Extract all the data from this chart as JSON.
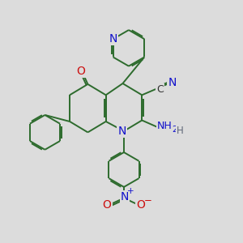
{
  "bg_color": "#dcdcdc",
  "bond_color": "#2d6b2d",
  "bond_width": 1.4,
  "dbo": 0.055,
  "atom_colors": {
    "N": "#1010cc",
    "O": "#cc1010",
    "C_dark": "#303030",
    "H": "#606878"
  },
  "fs": 8.5
}
